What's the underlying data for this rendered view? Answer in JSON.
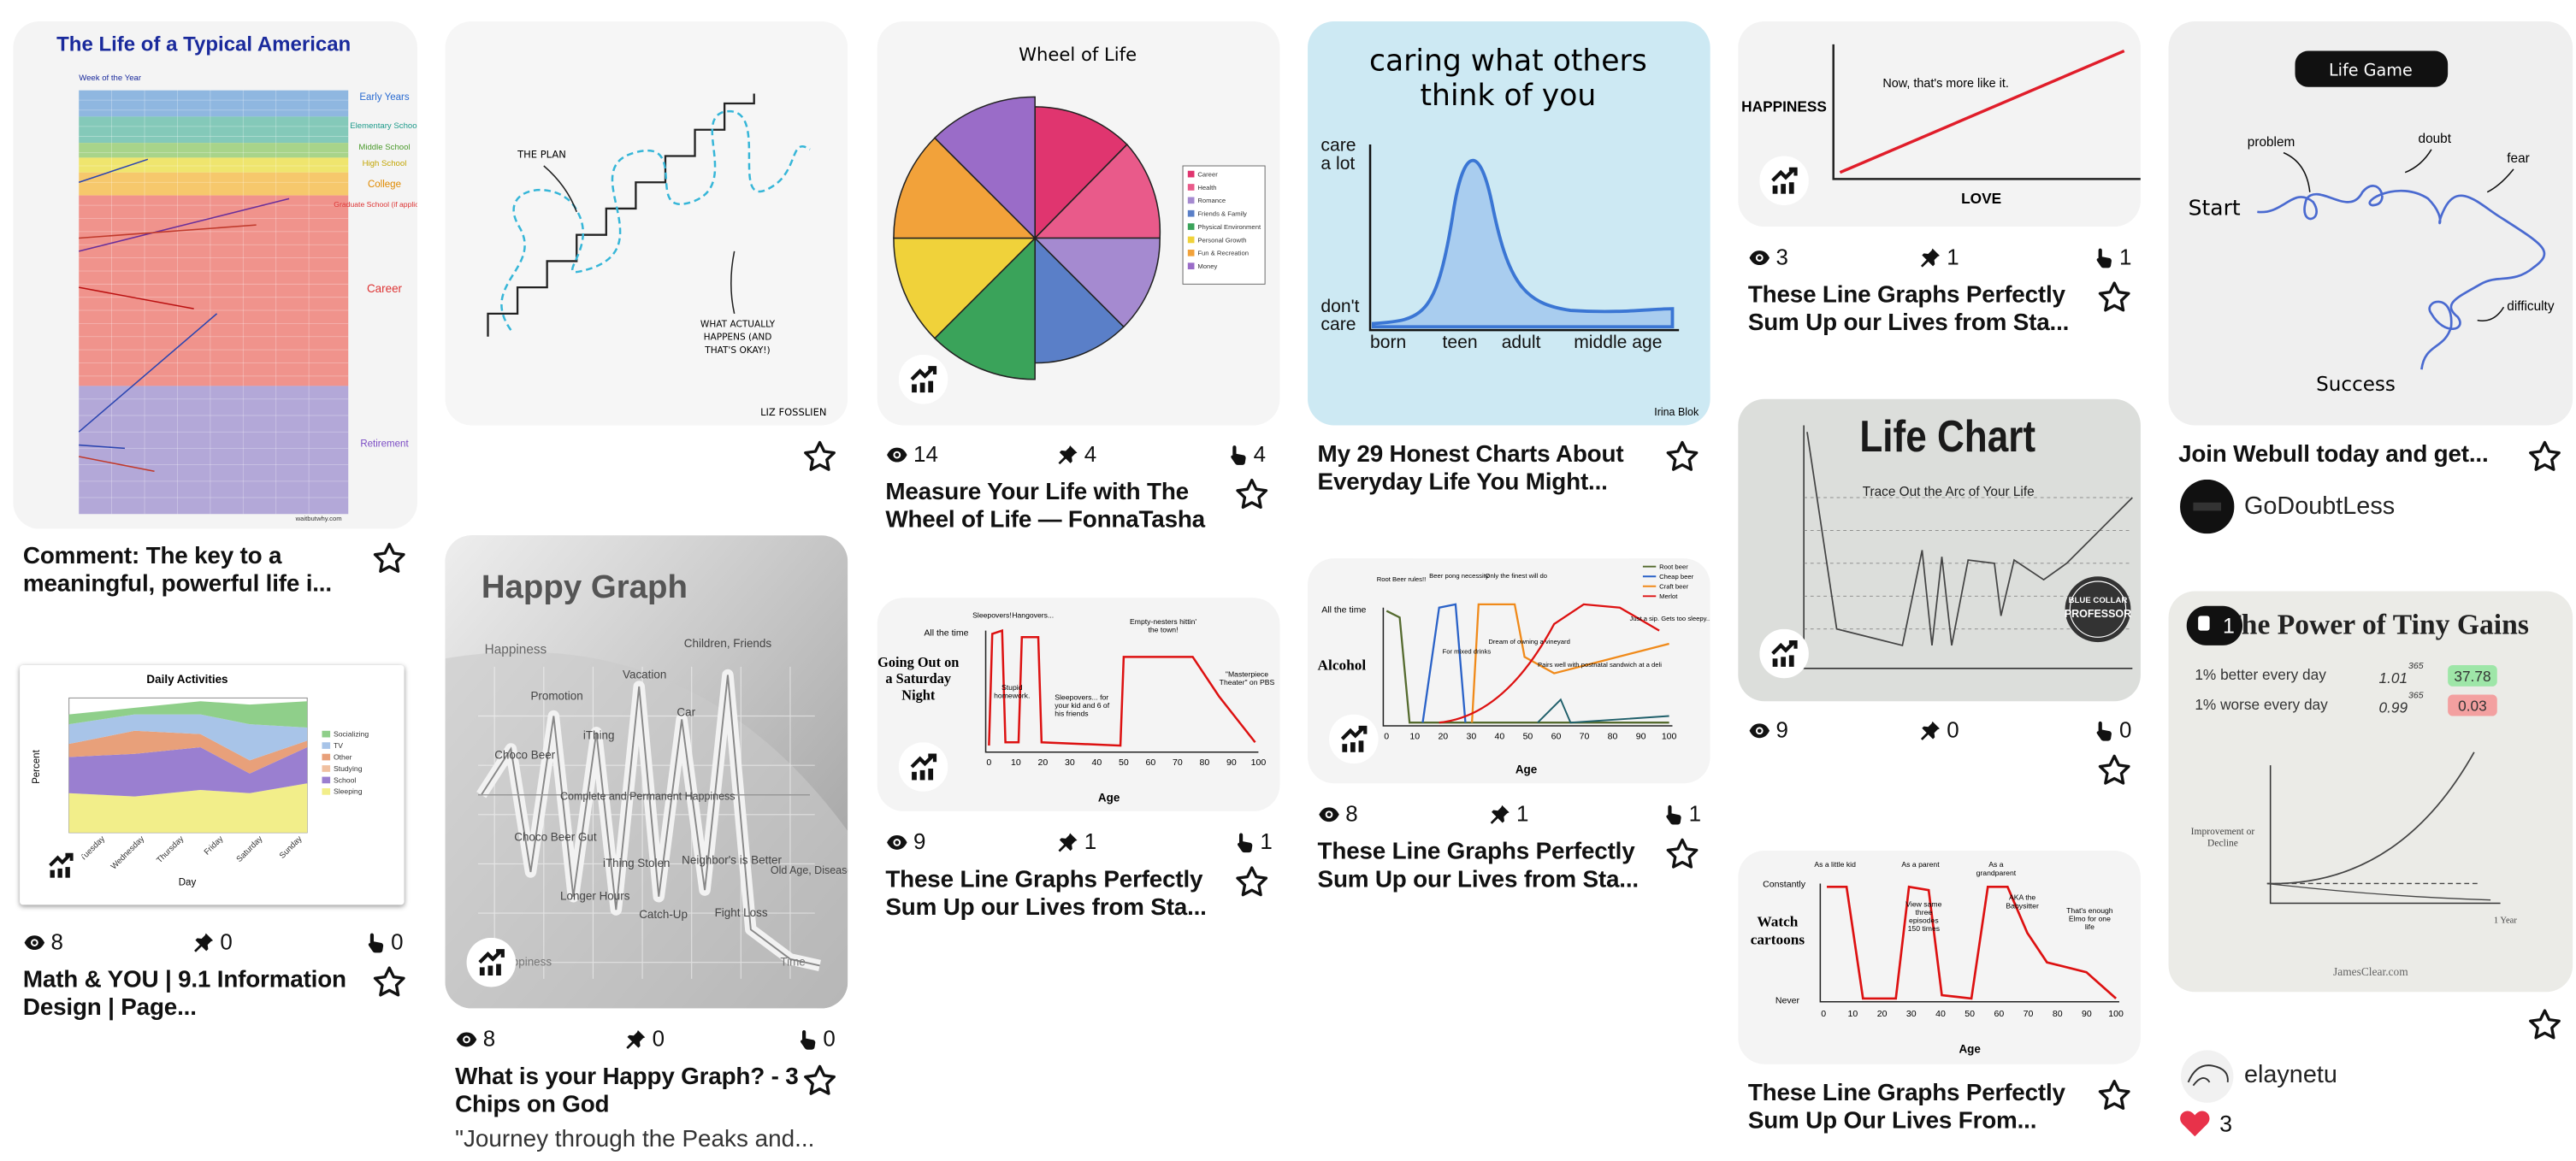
{
  "cards": [
    {
      "image_text": [
        "The Life of a Typical American",
        "Week of the Year",
        "Early Years",
        "Elementary School",
        "Middle School",
        "High School",
        "College",
        "Graduate School (if applicable)",
        "Career",
        "Retirement",
        "waitbutwhy.com"
      ],
      "title": "Comment: The key to a meaningful, powerful life i..."
    },
    {
      "image_text": [
        "Daily Activities",
        "Percent",
        "Day",
        "Socializing",
        "TV",
        "Other",
        "Studying",
        "School",
        "Sleeping",
        "Tuesday",
        "Wednesday",
        "Thursday",
        "Friday",
        "Saturday",
        "Sunday"
      ],
      "stats": {
        "views": 8,
        "saves": 0,
        "reactions": 0
      },
      "title": "Math & YOU | 9.1 Information Design | Page..."
    },
    {
      "image_text": [
        "THE PLAN",
        "WHAT ACTUALLY",
        "HAPPENS (AND",
        "THAT'S OKAY!)",
        "LIZ FOSSLIEN"
      ]
    },
    {
      "image_text": [
        "Happy Graph",
        "Happiness",
        "Promotion",
        "Vacation",
        "Children, Friends",
        "iThing",
        "Car",
        "Choco Beer",
        "Complete and Permanent Happiness",
        "Choco Beer Gut",
        "iThing Stolen",
        "Longer Hours",
        "Catch-Up",
        "Neighbor's is Better",
        "Fight Loss",
        "Old Age, Disease, Depression",
        "Unhappiness",
        "Time"
      ],
      "stats": {
        "views": 8,
        "saves": 0,
        "reactions": 0
      },
      "title": "What is your Happy Graph? - 3 Chips on God",
      "description": "\"Journey through the Peaks and..."
    },
    {
      "image_text": [
        "Wheel of Life",
        "Career",
        "Health",
        "Romance",
        "Friends & Family",
        "Physical Environment",
        "Personal Growth",
        "Fun & Recreation",
        "Money"
      ],
      "stats": {
        "views": 14,
        "saves": 4,
        "reactions": 4
      },
      "title": "Measure Your Life with The Wheel of Life — FonnaTasha"
    },
    {
      "image_text": [
        "All the time",
        "Going Out on a Saturday Night",
        "Sleepovers!",
        "Hangovers...",
        "Stupid homework.",
        "Sleepovers... for your kid and 6 of his friends",
        "Empty-nesters hittin' the town!",
        "\"Masterpiece Theater\" on PBS",
        "Age"
      ],
      "age_ticks": [
        0,
        10,
        20,
        30,
        40,
        50,
        60,
        70,
        80,
        90,
        100
      ],
      "stats": {
        "views": 9,
        "saves": 1,
        "reactions": 1
      },
      "title": "These Line Graphs Perfectly Sum Up our Lives from Sta..."
    },
    {
      "image_text": [
        "caring what others",
        "think of you",
        "care",
        "a lot",
        "don't",
        "care",
        "born",
        "teen",
        "adult",
        "middle age",
        "Irina Blok"
      ],
      "title": "My 29 Honest Charts About Everyday Life You Might..."
    },
    {
      "image_text": [
        "All the time",
        "Alcohol",
        "Root Beer rules!!",
        "Beer pong necessity",
        "For mixed drinks",
        "Only the finest will do",
        "Dream of owning a vineyard",
        "Pairs well with postnatal sandwich at a deli",
        "Just a sip. Gets too sleepy...",
        "Root beer",
        "Cheap beer",
        "Craft beer",
        "Merlot",
        "Age"
      ],
      "age_ticks": [
        0,
        10,
        20,
        30,
        40,
        50,
        60,
        70,
        80,
        90,
        100
      ],
      "stats": {
        "views": 8,
        "saves": 1,
        "reactions": 1
      },
      "title": "These Line Graphs Perfectly Sum Up our Lives from Sta..."
    },
    {
      "image_text": [
        "HAPPINESS",
        "Now, that's more like it.",
        "LOVE"
      ],
      "stats": {
        "views": 3,
        "saves": 1,
        "reactions": 1
      },
      "title": "These Line Graphs Perfectly Sum Up our Lives from Sta..."
    },
    {
      "image_text": [
        "Life Chart",
        "Trace Out the Arc of Your Life",
        "BLUE COLLAR",
        "PROFESSOR"
      ],
      "stats": {
        "views": 9,
        "saves": 0,
        "reactions": 0
      }
    },
    {
      "image_text": [
        "Constantly",
        "Watch cartoons",
        "Never",
        "As a little kid",
        "As a parent",
        "View same three episodes 150 times",
        "As a grandparent",
        "AKA the Babysitter",
        "That's enough Elmo for one life",
        "Age"
      ],
      "age_ticks": [
        0,
        10,
        20,
        30,
        40,
        50,
        60,
        70,
        80,
        90,
        100
      ],
      "title": "These Line Graphs Perfectly Sum Up Our Lives From..."
    },
    {
      "image_text": [
        "Life Game",
        "Start",
        "problem",
        "doubt",
        "fear",
        "difficulty",
        "Success"
      ],
      "title": "Join Webull today and get...",
      "author": "GoDoubtLess"
    },
    {
      "image_text": [
        "The Power of Tiny Gains",
        "1% better every day",
        "1.01",
        "365",
        "37.78",
        "1% worse every day",
        "0.99",
        "365",
        "0.03",
        "Improvement or Decline",
        "1 Year",
        "JamesClear.com"
      ],
      "badge": 1,
      "author": "elaynetu",
      "likes": 3
    }
  ]
}
